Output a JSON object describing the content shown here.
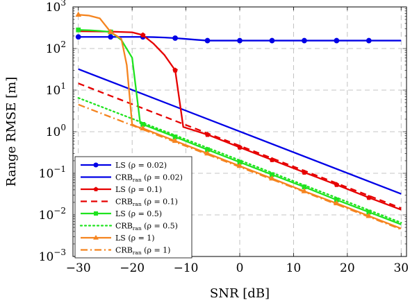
{
  "chart_data": {
    "type": "line",
    "xlabel": "SNR [dB]",
    "ylabel": "Range RMSE [m]",
    "xlim": [
      -31,
      31
    ],
    "ylim": [
      0.001,
      1000
    ],
    "yscale": "log",
    "grid": true,
    "legend_position": "bottom-left",
    "x_ticks": [
      "−30",
      "−20",
      "−10",
      "0",
      "10",
      "20",
      "30"
    ],
    "x_tick_values": [
      -30,
      -20,
      -10,
      0,
      10,
      20,
      30
    ],
    "y_ticks": [
      {
        "value": 0.001,
        "base": "10",
        "exp": "−3"
      },
      {
        "value": 0.01,
        "base": "10",
        "exp": "−2"
      },
      {
        "value": 0.1,
        "base": "10",
        "exp": "−1"
      },
      {
        "value": 1,
        "base": "10",
        "exp": "0"
      },
      {
        "value": 10,
        "base": "10",
        "exp": "1"
      },
      {
        "value": 100,
        "base": "10",
        "exp": "2"
      },
      {
        "value": 1000,
        "base": "10",
        "exp": "3"
      }
    ],
    "series": [
      {
        "name": "LS",
        "rho": "(ρ = 0.02)",
        "color": "#0000e6",
        "dash": "solid",
        "marker": "circle",
        "x": [
          -30,
          -28,
          -26,
          -24,
          -22,
          -20,
          -18,
          -16,
          -14,
          -12,
          -10,
          -8,
          -6,
          -4,
          -2,
          0,
          2,
          4,
          6,
          8,
          10,
          12,
          14,
          16,
          18,
          20,
          22,
          24,
          26,
          28,
          30
        ],
        "y": [
          190,
          190,
          190,
          190,
          190,
          190,
          190,
          188,
          184,
          178,
          170,
          162,
          155,
          155,
          155,
          155,
          155,
          155,
          155,
          155,
          155,
          155,
          155,
          155,
          155,
          155,
          155,
          155,
          155,
          155,
          155
        ],
        "marker_x": [
          -30,
          -24,
          -18,
          -12,
          -6,
          0,
          6,
          12,
          18,
          24
        ]
      },
      {
        "name": "CRB",
        "sub": "ran",
        "rho": "(ρ = 0.02)",
        "color": "#0000e6",
        "dash": "solid",
        "marker": "none",
        "x": [
          -30,
          30
        ],
        "y": [
          32,
          0.032
        ]
      },
      {
        "name": "LS",
        "rho": "(ρ = 0.1)",
        "color": "#e60000",
        "dash": "solid",
        "marker": "pentagon",
        "x": [
          -30,
          -24,
          -20,
          -18,
          -16,
          -14,
          -12,
          -10.5,
          -6,
          0,
          6,
          12,
          18,
          24,
          30
        ],
        "y": [
          260,
          255,
          245,
          210,
          130,
          70,
          30,
          1.3,
          0.85,
          0.42,
          0.21,
          0.105,
          0.053,
          0.026,
          0.0133
        ],
        "marker_x": [
          -18,
          -12,
          -6,
          0,
          6,
          12,
          18,
          24
        ]
      },
      {
        "name": "CRB",
        "sub": "ran",
        "rho": "(ρ = 0.1)",
        "color": "#e60000",
        "dash": "dashed",
        "marker": "none",
        "x": [
          -30,
          30
        ],
        "y": [
          14.5,
          0.0145
        ]
      },
      {
        "name": "LS",
        "rho": "(ρ = 0.5)",
        "color": "#1fe31f",
        "dash": "solid",
        "marker": "square",
        "x": [
          -30,
          -28,
          -26,
          -24,
          -22,
          -20,
          -18.5,
          -18,
          -12,
          -6,
          0,
          6,
          12,
          18,
          24,
          30
        ],
        "y": [
          280,
          275,
          265,
          250,
          160,
          60,
          1.6,
          1.5,
          0.75,
          0.37,
          0.185,
          0.093,
          0.047,
          0.023,
          0.0117,
          0.0059
        ],
        "marker_x": [
          -30,
          -24,
          -18,
          -12,
          -6,
          0,
          6,
          12,
          18,
          24
        ]
      },
      {
        "name": "CRB",
        "sub": "ran",
        "rho": "(ρ = 0.5)",
        "color": "#1fe31f",
        "dash": "dotted",
        "marker": "none",
        "x": [
          -30,
          30
        ],
        "y": [
          6.5,
          0.0065
        ]
      },
      {
        "name": "LS",
        "rho": "(ρ = 1)",
        "color": "#f5841f",
        "dash": "solid",
        "marker": "triangle",
        "x": [
          -30,
          -28,
          -26,
          -24,
          -22,
          -21,
          -20,
          -19,
          -18,
          -12,
          -6,
          0,
          6,
          12,
          18,
          24,
          30
        ],
        "y": [
          650,
          620,
          530,
          250,
          170,
          40,
          1.5,
          1.3,
          1.2,
          0.6,
          0.3,
          0.15,
          0.075,
          0.037,
          0.019,
          0.0094,
          0.0047
        ],
        "marker_x": [
          -30,
          -24,
          -18,
          -12,
          -6,
          0,
          6,
          12,
          18,
          24
        ]
      },
      {
        "name": "CRB",
        "sub": "ran",
        "rho": "(ρ = 1)",
        "color": "#f5841f",
        "dash": "dashdot",
        "marker": "none",
        "x": [
          -30,
          30
        ],
        "y": [
          4.5,
          0.0045
        ]
      }
    ]
  }
}
